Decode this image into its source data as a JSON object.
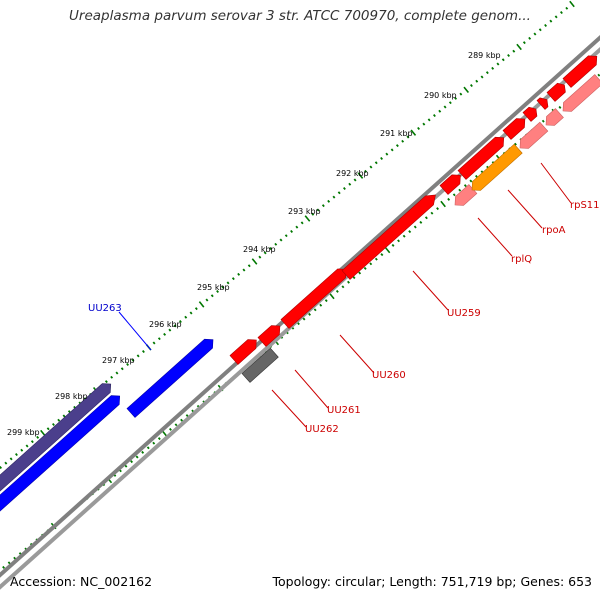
{
  "title": "Ureaplasma parvum serovar 3 str. ATCC 700970, complete genom...",
  "footer": {
    "accession": "Accession: NC_002162",
    "stats": "Topology: circular; Length: 751,719 bp; Genes: 653"
  },
  "ticks": [
    "289 kbp",
    "290 kbp",
    "291 kbp",
    "292 kbp",
    "293 kbp",
    "294 kbp",
    "295 kbp",
    "296 kbp",
    "297 kbp",
    "298 kbp",
    "299 kbp"
  ],
  "genes": [
    {
      "label": "UU263",
      "color": "#0000cc"
    },
    {
      "label": "UU259",
      "color": "#cc0000"
    },
    {
      "label": "UU260",
      "color": "#cc0000"
    },
    {
      "label": "UU261",
      "color": "#cc0000"
    },
    {
      "label": "UU262",
      "color": "#cc0000"
    },
    {
      "label": "rplQ",
      "color": "#cc0000"
    },
    {
      "label": "rpoA",
      "color": "#cc0000"
    },
    {
      "label": "rpS11",
      "color": "#cc0000"
    }
  ],
  "colors": {
    "backbone": "#808080",
    "tick": "#007700",
    "cds_forward": "#ff0000",
    "cds_reverse": "#ff8080",
    "blue_gene": "#0000ff",
    "dark_blue_gene": "#4b3f8c",
    "gray_gene": "#666666",
    "orange_gene": "#ff9900"
  }
}
